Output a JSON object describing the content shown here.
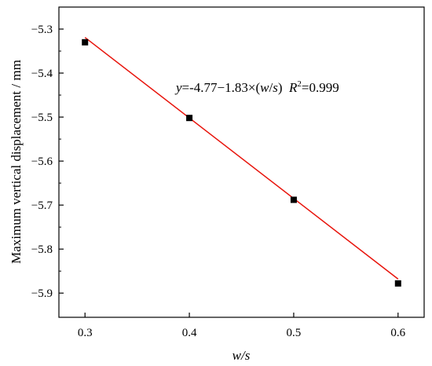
{
  "chart_data": {
    "type": "scatter",
    "xlabel": "w/s",
    "ylabel": "Maximum vertical displacement / mm",
    "xlim": [
      0.275,
      0.625
    ],
    "ylim": [
      -5.955,
      -5.25
    ],
    "x_ticks": [
      0.3,
      0.4,
      0.5,
      0.6
    ],
    "x_tick_labels": [
      "0.3",
      "0.4",
      "0.5",
      "0.6"
    ],
    "y_ticks": [
      -5.3,
      -5.4,
      -5.5,
      -5.6,
      -5.7,
      -5.8,
      -5.9
    ],
    "y_tick_labels": [
      "−5.3",
      "−5.4",
      "−5.5",
      "−5.6",
      "−5.7",
      "−5.8",
      "−5.9"
    ],
    "grid": false,
    "legend": "none",
    "series": [
      {
        "marker": "square",
        "color": "#000000",
        "x": [
          0.3,
          0.4,
          0.5,
          0.6
        ],
        "y": [
          -5.33,
          -5.502,
          -5.688,
          -5.878
        ]
      }
    ],
    "fit_line": {
      "color": "#e8140c",
      "intercept": -4.77,
      "slope": -1.83,
      "x_range": [
        0.3,
        0.6
      ]
    },
    "annotation": {
      "text": "y=-4.77−1.83×(w/s)  R2=0.999",
      "parts": {
        "y": "y",
        "eq_a": "=-4.77−1.83×(",
        "w": "w",
        "slash": "/",
        "s": "s",
        "eq_b": ")  ",
        "R": "R",
        "sup": "2",
        "eq_c": "=0.999"
      }
    }
  }
}
